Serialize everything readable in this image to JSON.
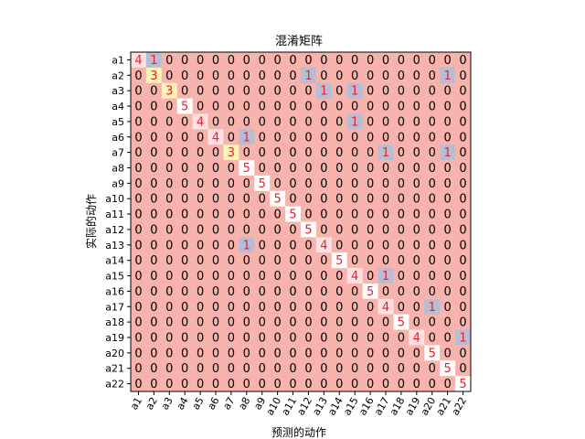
{
  "chart_data": {
    "type": "heatmap",
    "title": "混淆矩阵",
    "xlabel": "预测的动作",
    "ylabel": "实际的动作",
    "x_categories": [
      "a1",
      "a2",
      "a3",
      "a4",
      "a5",
      "a6",
      "a7",
      "a8",
      "a9",
      "a10",
      "a11",
      "a12",
      "a13",
      "a14",
      "a15",
      "a16",
      "a17",
      "a18",
      "a19",
      "a20",
      "a21",
      "a22"
    ],
    "y_categories": [
      "a1",
      "a2",
      "a3",
      "a4",
      "a5",
      "a6",
      "a7",
      "a8",
      "a9",
      "a10",
      "a11",
      "a12",
      "a13",
      "a14",
      "a15",
      "a16",
      "a17",
      "a18",
      "a19",
      "a20",
      "a21",
      "a22"
    ],
    "matrix": [
      [
        4,
        1,
        0,
        0,
        0,
        0,
        0,
        0,
        0,
        0,
        0,
        0,
        0,
        0,
        0,
        0,
        0,
        0,
        0,
        0,
        0,
        0
      ],
      [
        0,
        3,
        0,
        0,
        0,
        0,
        0,
        0,
        0,
        0,
        0,
        1,
        0,
        0,
        0,
        0,
        0,
        0,
        0,
        0,
        1,
        0
      ],
      [
        0,
        0,
        3,
        0,
        0,
        0,
        0,
        0,
        0,
        0,
        0,
        0,
        1,
        0,
        1,
        0,
        0,
        0,
        0,
        0,
        0,
        0
      ],
      [
        0,
        0,
        0,
        5,
        0,
        0,
        0,
        0,
        0,
        0,
        0,
        0,
        0,
        0,
        0,
        0,
        0,
        0,
        0,
        0,
        0,
        0
      ],
      [
        0,
        0,
        0,
        0,
        4,
        0,
        0,
        0,
        0,
        0,
        0,
        0,
        0,
        0,
        1,
        0,
        0,
        0,
        0,
        0,
        0,
        0
      ],
      [
        0,
        0,
        0,
        0,
        0,
        4,
        0,
        1,
        0,
        0,
        0,
        0,
        0,
        0,
        0,
        0,
        0,
        0,
        0,
        0,
        0,
        0
      ],
      [
        0,
        0,
        0,
        0,
        0,
        0,
        3,
        0,
        0,
        0,
        0,
        0,
        0,
        0,
        0,
        0,
        1,
        0,
        0,
        0,
        1,
        0
      ],
      [
        0,
        0,
        0,
        0,
        0,
        0,
        0,
        5,
        0,
        0,
        0,
        0,
        0,
        0,
        0,
        0,
        0,
        0,
        0,
        0,
        0,
        0
      ],
      [
        0,
        0,
        0,
        0,
        0,
        0,
        0,
        0,
        5,
        0,
        0,
        0,
        0,
        0,
        0,
        0,
        0,
        0,
        0,
        0,
        0,
        0
      ],
      [
        0,
        0,
        0,
        0,
        0,
        0,
        0,
        0,
        0,
        5,
        0,
        0,
        0,
        0,
        0,
        0,
        0,
        0,
        0,
        0,
        0,
        0
      ],
      [
        0,
        0,
        0,
        0,
        0,
        0,
        0,
        0,
        0,
        0,
        5,
        0,
        0,
        0,
        0,
        0,
        0,
        0,
        0,
        0,
        0,
        0
      ],
      [
        0,
        0,
        0,
        0,
        0,
        0,
        0,
        0,
        0,
        0,
        0,
        5,
        0,
        0,
        0,
        0,
        0,
        0,
        0,
        0,
        0,
        0
      ],
      [
        0,
        0,
        0,
        0,
        0,
        0,
        0,
        1,
        0,
        0,
        0,
        0,
        4,
        0,
        0,
        0,
        0,
        0,
        0,
        0,
        0,
        0
      ],
      [
        0,
        0,
        0,
        0,
        0,
        0,
        0,
        0,
        0,
        0,
        0,
        0,
        0,
        5,
        0,
        0,
        0,
        0,
        0,
        0,
        0,
        0
      ],
      [
        0,
        0,
        0,
        0,
        0,
        0,
        0,
        0,
        0,
        0,
        0,
        0,
        0,
        0,
        4,
        0,
        1,
        0,
        0,
        0,
        0,
        0
      ],
      [
        0,
        0,
        0,
        0,
        0,
        0,
        0,
        0,
        0,
        0,
        0,
        0,
        0,
        0,
        0,
        5,
        0,
        0,
        0,
        0,
        0,
        0
      ],
      [
        0,
        0,
        0,
        0,
        0,
        0,
        0,
        0,
        0,
        0,
        0,
        0,
        0,
        0,
        0,
        0,
        4,
        0,
        0,
        1,
        0,
        0
      ],
      [
        0,
        0,
        0,
        0,
        0,
        0,
        0,
        0,
        0,
        0,
        0,
        0,
        0,
        0,
        0,
        0,
        0,
        5,
        0,
        0,
        0,
        0
      ],
      [
        0,
        0,
        0,
        0,
        0,
        0,
        0,
        0,
        0,
        0,
        0,
        0,
        0,
        0,
        0,
        0,
        0,
        0,
        4,
        0,
        0,
        1
      ],
      [
        0,
        0,
        0,
        0,
        0,
        0,
        0,
        0,
        0,
        0,
        0,
        0,
        0,
        0,
        0,
        0,
        0,
        0,
        0,
        5,
        0,
        0
      ],
      [
        0,
        0,
        0,
        0,
        0,
        0,
        0,
        0,
        0,
        0,
        0,
        0,
        0,
        0,
        0,
        0,
        0,
        0,
        0,
        0,
        5,
        0
      ],
      [
        0,
        0,
        0,
        0,
        0,
        0,
        0,
        0,
        0,
        0,
        0,
        0,
        0,
        0,
        0,
        0,
        0,
        0,
        0,
        0,
        0,
        5
      ]
    ],
    "colormap": {
      "0": "#f8b4ac",
      "1": "#b6bdd4",
      "3": "#fff2b8",
      "4": "#fde0e2",
      "5": "#ffffff"
    },
    "text_colors": {
      "zero": "#000000",
      "nonzero": "#e8202a"
    },
    "grid": false,
    "legend": "none"
  }
}
